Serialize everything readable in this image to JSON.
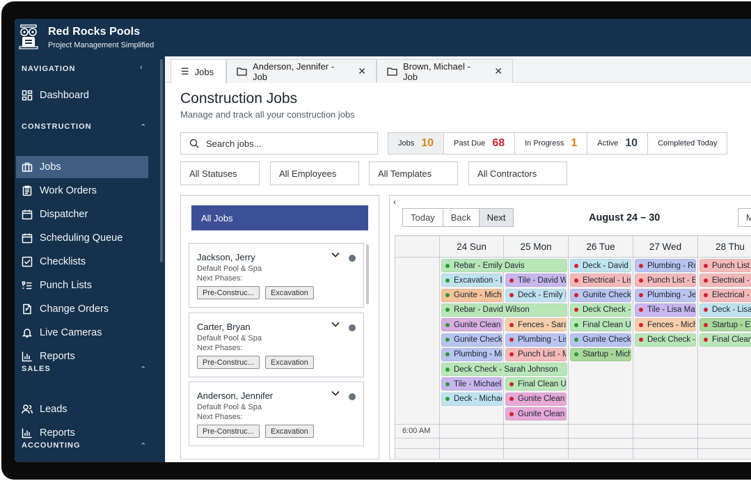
{
  "app": {
    "name": "Red Rocks Pools",
    "tagline": "Project Management Simplified"
  },
  "sidebar": {
    "sections": [
      {
        "title": "NAVIGATION",
        "caret": "‹",
        "items": [
          {
            "label": "Dashboard",
            "icon": "dashboard-icon"
          }
        ]
      },
      {
        "title": "CONSTRUCTION",
        "caret": "^",
        "items": [
          {
            "label": "Jobs",
            "icon": "briefcase-icon",
            "active": true
          },
          {
            "label": "Work Orders",
            "icon": "clipboard-icon"
          },
          {
            "label": "Dispatcher",
            "icon": "calendar-icon"
          },
          {
            "label": "Scheduling Queue",
            "icon": "calendar-icon"
          },
          {
            "label": "Checklists",
            "icon": "checkbox-icon"
          },
          {
            "label": "Punch Lists",
            "icon": "list-icon"
          },
          {
            "label": "Change Orders",
            "icon": "document-icon"
          },
          {
            "label": "Live Cameras",
            "icon": "bell-icon"
          },
          {
            "label": "Reports",
            "icon": "chart-icon"
          }
        ]
      },
      {
        "title": "SALES",
        "caret": "^",
        "items": [
          {
            "label": "Leads",
            "icon": "users-icon"
          },
          {
            "label": "Reports",
            "icon": "chart-icon"
          }
        ]
      },
      {
        "title": "ACCOUNTING",
        "caret": "^",
        "items": []
      }
    ]
  },
  "tabs": [
    {
      "label": "Jobs",
      "icon": "list-icon",
      "active": true
    },
    {
      "label": "Anderson, Jennifer - Job",
      "icon": "folder-icon",
      "close": "✕"
    },
    {
      "label": "Brown, Michael - Job",
      "icon": "folder-icon",
      "close": "✕"
    }
  ],
  "page": {
    "title": "Construction Jobs",
    "subtitle": "Manage and track all your construction jobs",
    "search_placeholder": "Search jobs..."
  },
  "stats": [
    {
      "label": "Jobs",
      "value": "10",
      "color": "#d08a1c"
    },
    {
      "label": "Past Due",
      "value": "68",
      "color": "#d4202e"
    },
    {
      "label": "In Progress",
      "value": "1",
      "color": "#e07a12"
    },
    {
      "label": "Active",
      "value": "10",
      "color": "#3a4654"
    },
    {
      "label": "Completed Today",
      "value": "",
      "color": "#1d2530"
    }
  ],
  "filters": [
    "All Statuses",
    "All Employees",
    "All Templates",
    "All Contractors"
  ],
  "joblist": {
    "header": "All Jobs",
    "cards": [
      {
        "name": "Jackson, Jerry",
        "template": "Default Pool & Spa",
        "next_label": "Next Phases:",
        "chips": [
          "Pre-Construc...",
          "Excavation"
        ]
      },
      {
        "name": "Carter, Bryan",
        "template": "Default Pool & Spa",
        "next_label": "Next Phases:",
        "chips": [
          "Pre-Construc...",
          "Excavation"
        ]
      },
      {
        "name": "Anderson, Jennifer",
        "template": "Default Pool & Spa",
        "next_label": "Next Phases:",
        "chips": [
          "Pre-Construc...",
          "Excavation"
        ]
      }
    ]
  },
  "calendar": {
    "back_glyph": "‹",
    "buttons": [
      "Today",
      "Back",
      "Next"
    ],
    "title": "August 24 – 30",
    "view_button": "M",
    "days": [
      "24 Sun",
      "25 Mon",
      "26 Tue",
      "27 Wed",
      "28 Thu"
    ],
    "time_label": "6:00 AM",
    "events": [
      {
        "day": 0,
        "row": 0,
        "span": 2,
        "text": "Rebar - Emily Davis",
        "bg": "#b9e6b9",
        "dot": "#2e9a3a"
      },
      {
        "day": 0,
        "row": 1,
        "span": 1,
        "text": "Excavation - Da",
        "bg": "#bfe3ee",
        "dot": "#2e9a3a"
      },
      {
        "day": 0,
        "row": 2,
        "span": 1,
        "text": "Gunite - Michae",
        "bg": "#f6c29a",
        "dot": "#2e9a3a"
      },
      {
        "day": 0,
        "row": 3,
        "span": 2,
        "text": "Rebar - David Wilson",
        "bg": "#b9e6b9",
        "dot": "#2e9a3a"
      },
      {
        "day": 0,
        "row": 4,
        "span": 1,
        "text": "Gunite Clean U",
        "bg": "#d8aee0",
        "dot": "#2e9a3a"
      },
      {
        "day": 0,
        "row": 5,
        "span": 1,
        "text": "Gunite Check -",
        "bg": "#b9c3ef",
        "dot": "#2e9a3a"
      },
      {
        "day": 0,
        "row": 6,
        "span": 1,
        "text": "Plumbing - Mic",
        "bg": "#b9c3ef",
        "dot": "#2e9a3a"
      },
      {
        "day": 0,
        "row": 7,
        "span": 2,
        "text": "Deck Check - Sarah Johnson",
        "bg": "#b9e6b9",
        "dot": "#2e9a3a"
      },
      {
        "day": 0,
        "row": 8,
        "span": 1,
        "text": "Tile - Michael B",
        "bg": "#c8b6ee",
        "dot": "#2e9a3a"
      },
      {
        "day": 0,
        "row": 9,
        "span": 1,
        "text": "Deck - Michael",
        "bg": "#bfe3ee",
        "dot": "#2e9a3a"
      },
      {
        "day": 1,
        "row": 1,
        "span": 1,
        "text": "Tile - David Wil",
        "bg": "#c8b6ee",
        "dot": "#d4202e"
      },
      {
        "day": 1,
        "row": 2,
        "span": 1,
        "text": "Deck - Emily Da",
        "bg": "#bfe3ee",
        "dot": "#d4202e"
      },
      {
        "day": 1,
        "row": 4,
        "span": 1,
        "text": "Fences - Sarah",
        "bg": "#f6cfa9",
        "dot": "#d4202e"
      },
      {
        "day": 1,
        "row": 5,
        "span": 1,
        "text": "Plumbing - Lisa",
        "bg": "#b9c3ef",
        "dot": "#d4202e"
      },
      {
        "day": 1,
        "row": 6,
        "span": 1,
        "text": "Punch List - Mi",
        "bg": "#f3b9b9",
        "dot": "#d4202e"
      },
      {
        "day": 1,
        "row": 8,
        "span": 1,
        "text": "Final Clean Up",
        "bg": "#b9e6b9",
        "dot": "#d4202e"
      },
      {
        "day": 1,
        "row": 9,
        "span": 1,
        "text": "Gunite Clean U",
        "bg": "#e6a9d8",
        "dot": "#d4202e"
      },
      {
        "day": 1,
        "row": 10,
        "span": 1,
        "text": "Gunite Clean U",
        "bg": "#e6a9d8",
        "dot": "#d4202e"
      },
      {
        "day": 2,
        "row": 0,
        "span": 1,
        "text": "Deck - David W",
        "bg": "#bfe3ee",
        "dot": "#d4202e"
      },
      {
        "day": 2,
        "row": 1,
        "span": 1,
        "text": "Electrical - Lisa",
        "bg": "#f3b9b9",
        "dot": "#d4202e"
      },
      {
        "day": 2,
        "row": 2,
        "span": 1,
        "text": "Gunite Check -",
        "bg": "#b9c3ef",
        "dot": "#d4202e"
      },
      {
        "day": 2,
        "row": 3,
        "span": 1,
        "text": "Deck Check - E",
        "bg": "#b9e6b9",
        "dot": "#d4202e"
      },
      {
        "day": 2,
        "row": 4,
        "span": 1,
        "text": "Final Clean Up",
        "bg": "#b9e6b9",
        "dot": "#2e9a3a"
      },
      {
        "day": 2,
        "row": 5,
        "span": 1,
        "text": "Gunite Check -",
        "bg": "#b9c3ef",
        "dot": "#2e9a3a"
      },
      {
        "day": 2,
        "row": 6,
        "span": 1,
        "text": "Startup - Micha",
        "bg": "#a9d89a",
        "dot": "#2e9a3a"
      },
      {
        "day": 3,
        "row": 0,
        "span": 1,
        "text": "Plumbing - Rob",
        "bg": "#b9c3ef",
        "dot": "#d4202e"
      },
      {
        "day": 3,
        "row": 1,
        "span": 1,
        "text": "Punch List - Em",
        "bg": "#f3b9b9",
        "dot": "#d4202e"
      },
      {
        "day": 3,
        "row": 2,
        "span": 1,
        "text": "Plumbing - Jen",
        "bg": "#b9c3ef",
        "dot": "#d4202e"
      },
      {
        "day": 3,
        "row": 3,
        "span": 1,
        "text": "Tile - Lisa Mart",
        "bg": "#c8b6ee",
        "dot": "#d4202e"
      },
      {
        "day": 3,
        "row": 4,
        "span": 1,
        "text": "Fences - Micha",
        "bg": "#f6cfa9",
        "dot": "#d4202e"
      },
      {
        "day": 3,
        "row": 5,
        "span": 1,
        "text": "Deck Check - D",
        "bg": "#b9e6b9",
        "dot": "#d4202e"
      },
      {
        "day": 4,
        "row": 0,
        "span": 1,
        "text": "Punch List -",
        "bg": "#f3b9b9",
        "dot": "#d4202e"
      },
      {
        "day": 4,
        "row": 1,
        "span": 1,
        "text": "Electrical - R",
        "bg": "#f3b9b9",
        "dot": "#d4202e"
      },
      {
        "day": 4,
        "row": 2,
        "span": 1,
        "text": "Electrical - J",
        "bg": "#f3b9b9",
        "dot": "#d4202e"
      },
      {
        "day": 4,
        "row": 3,
        "span": 1,
        "text": "Deck - Lisa M",
        "bg": "#bfe3ee",
        "dot": "#d4202e"
      },
      {
        "day": 4,
        "row": 4,
        "span": 1,
        "text": "Startup - Em",
        "bg": "#a9d89a",
        "dot": "#d4202e"
      },
      {
        "day": 4,
        "row": 5,
        "span": 1,
        "text": "Final Clean U",
        "bg": "#b9e6b9",
        "dot": "#d4202e"
      }
    ]
  }
}
